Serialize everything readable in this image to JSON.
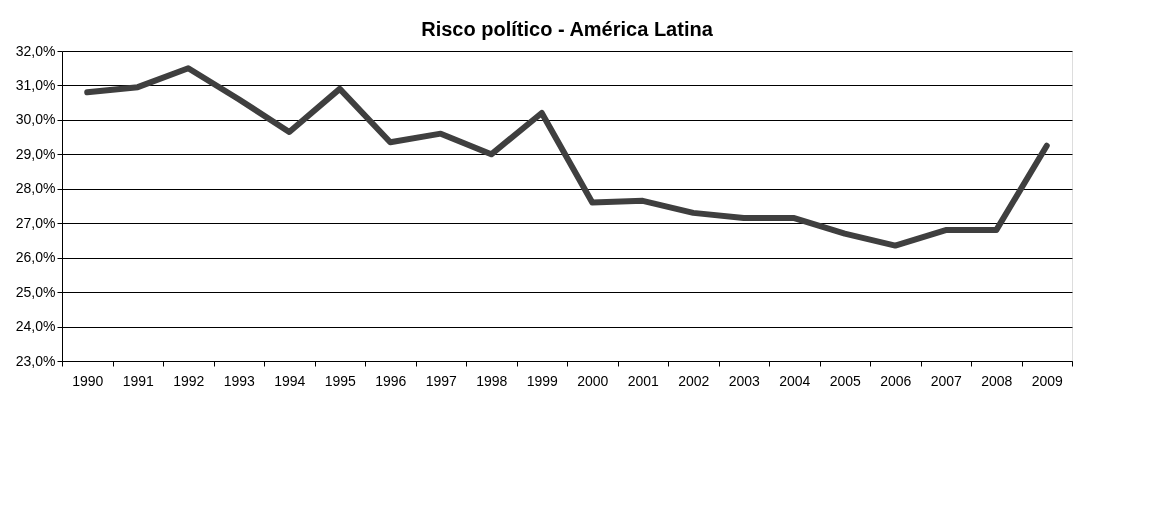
{
  "chart_data": {
    "type": "line",
    "title": "Risco político - América Latina",
    "categories": [
      "1990",
      "1991",
      "1992",
      "1993",
      "1994",
      "1995",
      "1996",
      "1997",
      "1998",
      "1999",
      "2000",
      "2001",
      "2002",
      "2003",
      "2004",
      "2005",
      "2006",
      "2007",
      "2008",
      "2009"
    ],
    "series": [
      {
        "color": "#3f3f3f",
        "values": [
          30.8,
          30.95,
          31.5,
          30.6,
          29.65,
          30.9,
          29.35,
          29.6,
          29.0,
          30.2,
          27.6,
          27.65,
          27.3,
          27.15,
          27.15,
          26.7,
          26.35,
          26.8,
          26.8,
          29.25
        ]
      }
    ],
    "ylim": [
      23,
      32
    ],
    "yticks": [
      {
        "value": 23,
        "label": "23,0%"
      },
      {
        "value": 24,
        "label": "24,0%"
      },
      {
        "value": 25,
        "label": "25,0%"
      },
      {
        "value": 26,
        "label": "26,0%"
      },
      {
        "value": 27,
        "label": "27,0%"
      },
      {
        "value": 28,
        "label": "28,0%"
      },
      {
        "value": 29,
        "label": "29,0%"
      },
      {
        "value": 30,
        "label": "30,0%"
      },
      {
        "value": 31,
        "label": "31,0%"
      },
      {
        "value": 32,
        "label": "32,0%"
      }
    ],
    "grid": "y",
    "legend": false,
    "marker": "none",
    "line_style": "solid"
  }
}
